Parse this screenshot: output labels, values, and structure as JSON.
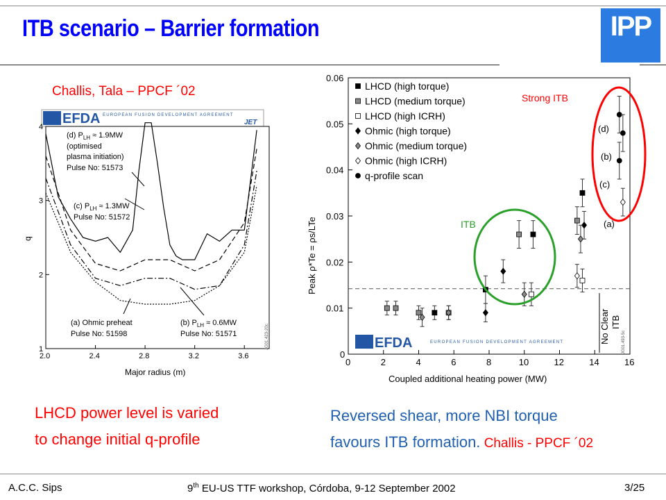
{
  "slide": {
    "title": "ITB scenario – Barrier formation",
    "logo": "IPP"
  },
  "left_panel": {
    "citation": "Challis, Tala – PPCF ´02",
    "banner": {
      "name": "EFDA",
      "subtitle": "EUROPEAN FUSION DEVELOPMENT AGREEMENT",
      "mark": "JET"
    },
    "figure_id": "JG01.423-20c",
    "caption_line1": "LHCD power level is varied",
    "caption_line2": "to change initial q-profile",
    "chart_data": {
      "type": "line",
      "xlabel": "Major radius (m)",
      "ylabel": "q",
      "xlim": [
        2.0,
        3.8
      ],
      "ylim": [
        1,
        4
      ],
      "x_ticks": [
        "2.0",
        "2.4",
        "2.8",
        "3.2",
        "3.6"
      ],
      "y_ticks": [
        "1",
        "2",
        "3",
        "4"
      ],
      "annotations": {
        "d_line1": "(d) P",
        "d_sub": "LH",
        "d_rest": " ≈ 1.9MW",
        "d_line2": "(optimised",
        "d_line3": "plasma initiation)",
        "d_line4": "Pulse No: 51573",
        "c_line1": "(c) P",
        "c_sub": "LH",
        "c_rest": " ≈ 1.3MW",
        "c_line2": "Pulse No: 51572",
        "a_line1": "(a) Ohmic preheat",
        "a_line2": "Pulse No: 51598",
        "b_line1": "(b) P",
        "b_sub": "LH",
        "b_rest": " ≈ 0.6MW",
        "b_line2": "Pulse No: 51571"
      },
      "series": [
        {
          "name": "(d)",
          "style": "solid",
          "x": [
            2.0,
            2.1,
            2.2,
            2.3,
            2.4,
            2.5,
            2.6,
            2.7,
            2.75,
            2.8,
            2.85,
            2.9,
            2.95,
            3.0,
            3.05,
            3.1,
            3.2,
            3.3,
            3.4,
            3.5,
            3.6,
            3.7
          ],
          "y": [
            3.9,
            3.05,
            2.75,
            2.5,
            2.45,
            2.5,
            2.3,
            2.6,
            3.4,
            4.05,
            4.05,
            3.5,
            2.9,
            2.4,
            2.25,
            2.2,
            2.2,
            2.55,
            2.45,
            2.6,
            2.6,
            3.95
          ]
        },
        {
          "name": "(c)",
          "style": "dashed",
          "x": [
            2.0,
            2.2,
            2.4,
            2.6,
            2.8,
            3.0,
            3.2,
            3.4,
            3.6,
            3.7
          ],
          "y": [
            3.6,
            2.6,
            2.15,
            2.05,
            2.2,
            2.2,
            2.05,
            2.2,
            2.7,
            3.7
          ]
        },
        {
          "name": "(b)",
          "style": "dash-dot",
          "x": [
            2.0,
            2.2,
            2.4,
            2.6,
            2.8,
            3.0,
            3.2,
            3.4,
            3.6,
            3.7
          ],
          "y": [
            3.3,
            2.4,
            1.95,
            1.85,
            1.95,
            1.95,
            1.8,
            1.85,
            2.4,
            3.4
          ]
        },
        {
          "name": "(a)",
          "style": "dotted",
          "x": [
            2.0,
            2.2,
            2.4,
            2.6,
            2.8,
            3.0,
            3.2,
            3.4,
            3.6,
            3.7
          ],
          "y": [
            3.1,
            2.3,
            1.9,
            1.65,
            1.6,
            1.6,
            1.65,
            1.85,
            2.3,
            3.2
          ]
        }
      ]
    }
  },
  "right_panel": {
    "caption_line1": "Reversed shear, more NBI torque",
    "caption_line2": "favours ITB formation.",
    "caption_cite": " Challis - PPCF ´02",
    "figure_id": "JG01.493-5c",
    "banner": {
      "name": "EFDA",
      "subtitle": "EUROPEAN FUSION DEVELOPMENT AGREEMENT"
    },
    "labels": {
      "strong_itb": "Strong ITB",
      "itb": "ITB",
      "no_clear_line1": "No Clear",
      "no_clear_line2": "ITB",
      "d": "(d)",
      "b": "(b)",
      "c": "(c)",
      "a": "(a)"
    },
    "colors": {
      "strong_itb": "#ff0000",
      "itb": "#2aa02a",
      "grid": "#666666"
    },
    "chart_data": {
      "type": "scatter",
      "xlabel": "Coupled additional heating power (MW)",
      "ylabel": "Peak ρ*Te = ρs/LTe",
      "xlim": [
        0,
        16
      ],
      "ylim": [
        0,
        0.06
      ],
      "x_ticks": [
        "0",
        "2",
        "4",
        "6",
        "8",
        "10",
        "12",
        "14",
        "16"
      ],
      "y_ticks": [
        "0",
        "0.01",
        "0.02",
        "0.03",
        "0.04",
        "0.05",
        "0.06"
      ],
      "threshold": 0.0142,
      "legend": [
        {
          "name": "LHCD (high torque)",
          "marker": "square",
          "fill": "#000000"
        },
        {
          "name": "LHCD (medium torque)",
          "marker": "square",
          "fill": "#888888"
        },
        {
          "name": "LHCD (high ICRH)",
          "marker": "square",
          "fill": "#ffffff"
        },
        {
          "name": "Ohmic (high torque)",
          "marker": "diamond",
          "fill": "#000000"
        },
        {
          "name": "Ohmic (medium torque)",
          "marker": "diamond",
          "fill": "#888888"
        },
        {
          "name": "Ohmic (high ICRH)",
          "marker": "diamond",
          "fill": "#ffffff"
        },
        {
          "name": "q-profile scan",
          "marker": "circle",
          "fill": "#000000"
        }
      ],
      "points": [
        {
          "x": 2.2,
          "y": 0.01,
          "s": 1,
          "err": 0.0015
        },
        {
          "x": 2.7,
          "y": 0.01,
          "s": 1,
          "err": 0.0015
        },
        {
          "x": 4.0,
          "y": 0.009,
          "s": 1,
          "err": 0.0015
        },
        {
          "x": 4.9,
          "y": 0.009,
          "s": 0,
          "err": 0.0015
        },
        {
          "x": 5.7,
          "y": 0.009,
          "s": 1,
          "err": 0.0015
        },
        {
          "x": 7.8,
          "y": 0.014,
          "s": 0,
          "err": 0.003
        },
        {
          "x": 9.7,
          "y": 0.026,
          "s": 1,
          "err": 0.003
        },
        {
          "x": 10.5,
          "y": 0.026,
          "s": 0,
          "err": 0.003
        },
        {
          "x": 13.0,
          "y": 0.029,
          "s": 1,
          "err": 0.003
        },
        {
          "x": 13.3,
          "y": 0.035,
          "s": 0,
          "err": 0.003
        },
        {
          "x": 10.4,
          "y": 0.013,
          "s": 2,
          "err": 0.0025
        },
        {
          "x": 13.3,
          "y": 0.016,
          "s": 2,
          "err": 0.0025
        },
        {
          "x": 7.8,
          "y": 0.009,
          "s": 3,
          "err": 0.002
        },
        {
          "x": 8.8,
          "y": 0.018,
          "s": 3,
          "err": 0.0025
        },
        {
          "x": 13.4,
          "y": 0.028,
          "s": 3,
          "err": 0.003
        },
        {
          "x": 4.2,
          "y": 0.008,
          "s": 4,
          "err": 0.002
        },
        {
          "x": 5.7,
          "y": 0.009,
          "s": 4,
          "err": 0.0015
        },
        {
          "x": 10.0,
          "y": 0.013,
          "s": 4,
          "err": 0.0025
        },
        {
          "x": 13.2,
          "y": 0.025,
          "s": 4,
          "err": 0.003
        },
        {
          "x": 13.0,
          "y": 0.017,
          "s": 5,
          "err": 0.0025
        },
        {
          "x": 15.6,
          "y": 0.033,
          "s": 5,
          "err": 0.003
        },
        {
          "x": 15.4,
          "y": 0.052,
          "s": 6,
          "err": 0.004
        },
        {
          "x": 15.6,
          "y": 0.048,
          "s": 6,
          "err": 0.004
        },
        {
          "x": 15.4,
          "y": 0.042,
          "s": 6,
          "err": 0.004
        }
      ]
    }
  },
  "footer": {
    "author": "A.C.C. Sips",
    "event_prefix": "9",
    "event_sup": "th",
    "event_rest": " EU-US TTF workshop, Córdoba, 9-12 September 2002",
    "page": "3/25"
  }
}
